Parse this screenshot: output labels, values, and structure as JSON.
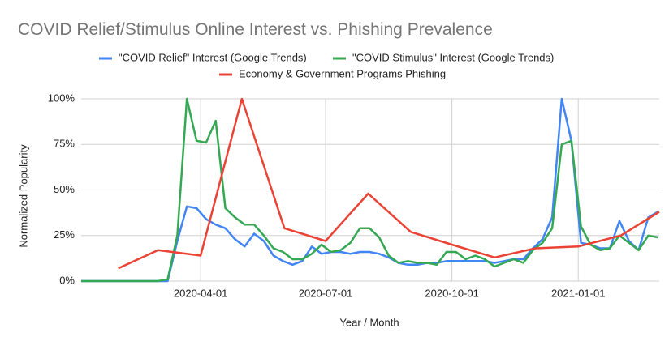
{
  "chart_data": {
    "type": "line",
    "title": "COVID Relief/Stimulus Online Interest vs. Phishing Prevalence",
    "x_label": "Year / Month",
    "y_label": "Normalized Popularity",
    "x": [
      "2020-01-05",
      "2020-01-12",
      "2020-01-19",
      "2020-01-26",
      "2020-02-02",
      "2020-02-09",
      "2020-02-16",
      "2020-02-23",
      "2020-03-01",
      "2020-03-08",
      "2020-03-15",
      "2020-03-22",
      "2020-03-29",
      "2020-04-05",
      "2020-04-12",
      "2020-04-19",
      "2020-04-26",
      "2020-05-03",
      "2020-05-10",
      "2020-05-17",
      "2020-05-24",
      "2020-05-31",
      "2020-06-07",
      "2020-06-14",
      "2020-06-21",
      "2020-06-28",
      "2020-07-05",
      "2020-07-12",
      "2020-07-19",
      "2020-07-26",
      "2020-08-02",
      "2020-08-09",
      "2020-08-16",
      "2020-08-23",
      "2020-08-30",
      "2020-09-06",
      "2020-09-13",
      "2020-09-20",
      "2020-09-27",
      "2020-10-04",
      "2020-10-11",
      "2020-10-18",
      "2020-10-25",
      "2020-11-01",
      "2020-11-08",
      "2020-11-15",
      "2020-11-22",
      "2020-11-29",
      "2020-12-06",
      "2020-12-13",
      "2020-12-20",
      "2020-12-27",
      "2021-01-03",
      "2021-01-10",
      "2021-01-17",
      "2021-01-24",
      "2021-01-31",
      "2021-02-07",
      "2021-02-14",
      "2021-02-21",
      "2021-02-28"
    ],
    "series": [
      {
        "name": "\"COVID Relief\" Interest (Google Trends)",
        "color": "#4285f4",
        "values": [
          0,
          0,
          0,
          0,
          0,
          0,
          0,
          0,
          0,
          0,
          22,
          41,
          40,
          34,
          31,
          29,
          23,
          19,
          26,
          22,
          14,
          11,
          9,
          11,
          19,
          15,
          16,
          16,
          15,
          16,
          16,
          15,
          13,
          10,
          9,
          9,
          10,
          10,
          11,
          11,
          11,
          11,
          11,
          10,
          11,
          12,
          12,
          18,
          23,
          35,
          100,
          77,
          21,
          20,
          18,
          18,
          33,
          22,
          17,
          35,
          38
        ]
      },
      {
        "name": "\"COVID Stimulus\" Interest (Google Trends)",
        "color": "#34a853",
        "values": [
          0,
          0,
          0,
          0,
          0,
          0,
          0,
          0,
          0,
          1,
          25,
          100,
          77,
          76,
          88,
          40,
          35,
          31,
          31,
          25,
          18,
          16,
          12,
          12,
          15,
          20,
          16,
          17,
          21,
          29,
          29,
          24,
          14,
          10,
          11,
          10,
          10,
          9,
          16,
          16,
          12,
          14,
          12,
          8,
          10,
          12,
          10,
          17,
          21,
          29,
          75,
          77,
          30,
          20,
          17,
          18,
          25,
          21,
          17,
          25,
          24
        ]
      },
      {
        "name": "Economy & Government Programs Phishing",
        "color": "#ea4335",
        "x": [
          "2020-02-01",
          "2020-03-01",
          "2020-04-01",
          "2020-05-01",
          "2020-06-01",
          "2020-07-01",
          "2020-08-01",
          "2020-09-01",
          "2020-10-01",
          "2020-11-01",
          "2020-12-01",
          "2021-01-01",
          "2021-02-01",
          "2021-03-01"
        ],
        "values": [
          7,
          17,
          14,
          100,
          29,
          22,
          48,
          27,
          20,
          13,
          18,
          19,
          25,
          38
        ]
      }
    ],
    "xlim": [
      "2020-01-05",
      "2021-03-01"
    ],
    "xticks": [
      "2020-04-01",
      "2020-07-01",
      "2020-10-01",
      "2021-01-01"
    ],
    "ylim": [
      0,
      100
    ],
    "yticks": [
      {
        "value": 0,
        "label": "0%"
      },
      {
        "value": 25,
        "label": "25%"
      },
      {
        "value": 50,
        "label": "50%"
      },
      {
        "value": 75,
        "label": "75%"
      },
      {
        "value": 100,
        "label": "100%"
      }
    ],
    "grid": true
  }
}
